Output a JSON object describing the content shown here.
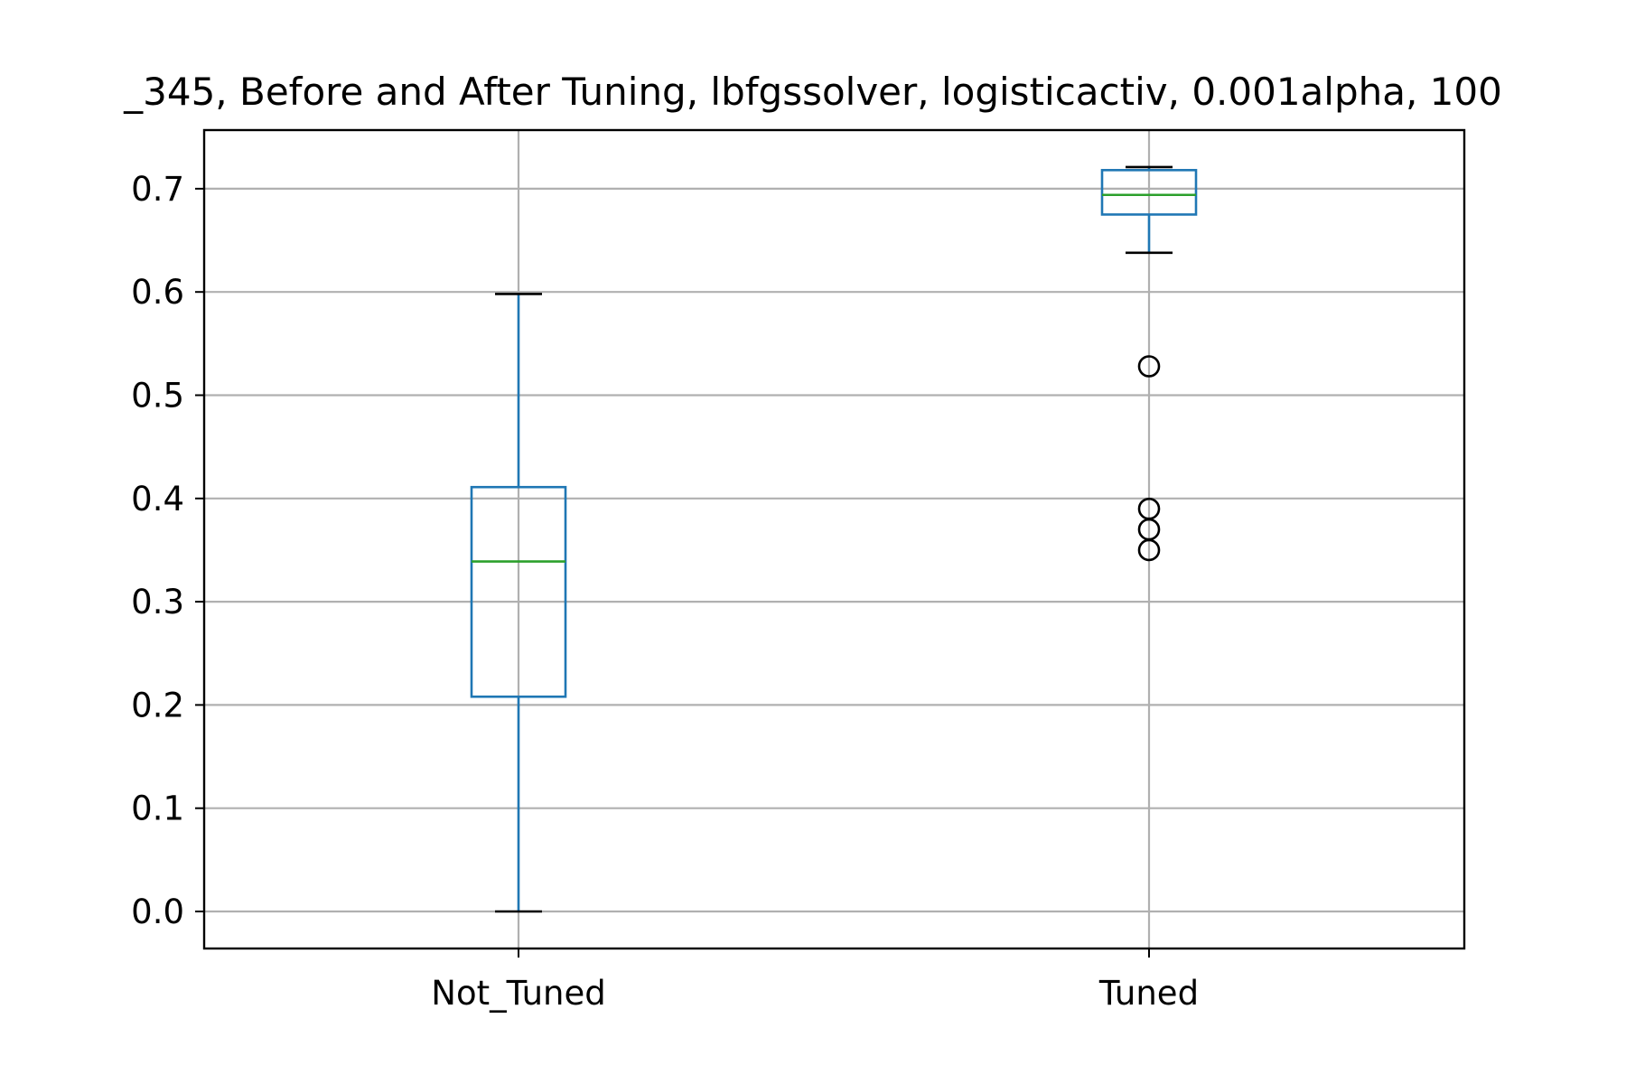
{
  "chart_data": {
    "type": "box",
    "title": "_345, Before and After Tuning, lbfgssolver, logisticactiv, 0.001alpha, 100",
    "xlabel": "",
    "ylabel": "",
    "categories": [
      "Not_Tuned",
      "Tuned"
    ],
    "yticks": [
      "0.0",
      "0.1",
      "0.2",
      "0.3",
      "0.4",
      "0.5",
      "0.6",
      "0.7"
    ],
    "ylim": [
      -0.035,
      0.757
    ],
    "grid": true,
    "boxes": [
      {
        "category": "Not_Tuned",
        "whisker_low": 0.0,
        "q1": 0.208,
        "median": 0.339,
        "q3": 0.411,
        "whisker_high": 0.598,
        "outliers": []
      },
      {
        "category": "Tuned",
        "whisker_low": 0.638,
        "q1": 0.675,
        "median": 0.694,
        "q3": 0.718,
        "whisker_high": 0.721,
        "outliers": [
          0.528,
          0.39,
          0.37,
          0.35
        ]
      }
    ],
    "colors": {
      "box": "#1f77b4",
      "median": "#2ca02c",
      "whisker_cap": "#000000",
      "grid": "#b0b0b0",
      "outlier": "#000000"
    }
  }
}
